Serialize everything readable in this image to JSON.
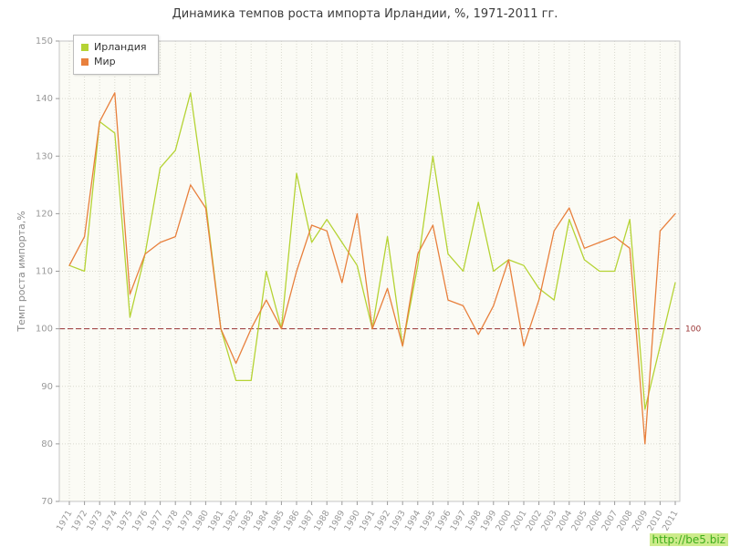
{
  "page": {
    "watermark": "http://be5.biz"
  },
  "chart_data": {
    "type": "line",
    "title": "Динамика темпов роста импорта Ирландии, %, 1971-2011 гг.",
    "xlabel": "",
    "ylabel": "Темп роста импорта,%",
    "ylim": [
      70,
      150
    ],
    "ytick_step": 10,
    "grid": true,
    "grid_style": "dotted",
    "legend_position": "top-left",
    "reference_line": {
      "value": 100,
      "label": "100",
      "color": "#993333",
      "style": "dashed"
    },
    "categories": [
      "1971",
      "1972",
      "1973",
      "1974",
      "1975",
      "1976",
      "1977",
      "1978",
      "1979",
      "1980",
      "1981",
      "1982",
      "1983",
      "1984",
      "1985",
      "1986",
      "1987",
      "1988",
      "1989",
      "1990",
      "1991",
      "1992",
      "1993",
      "1994",
      "1995",
      "1996",
      "1997",
      "1998",
      "1999",
      "2000",
      "2001",
      "2002",
      "2003",
      "2004",
      "2005",
      "2006",
      "2007",
      "2008",
      "2009",
      "2010",
      "2011"
    ],
    "series": [
      {
        "name": "Ирландия",
        "color": "#b5d334",
        "values": [
          111,
          110,
          136,
          134,
          102,
          113,
          128,
          131,
          141,
          122,
          100,
          91,
          91,
          110,
          100,
          127,
          115,
          119,
          115,
          111,
          100,
          116,
          97,
          111,
          130,
          113,
          110,
          122,
          110,
          112,
          111,
          107,
          105,
          119,
          112,
          110,
          110,
          119,
          86,
          97,
          108
        ]
      },
      {
        "name": "Мир",
        "color": "#e8803d",
        "values": [
          111,
          116,
          136,
          141,
          106,
          113,
          115,
          116,
          125,
          121,
          100,
          94,
          100,
          105,
          100,
          110,
          118,
          117,
          108,
          120,
          100,
          107,
          97,
          113,
          118,
          105,
          104,
          99,
          104,
          112,
          97,
          105,
          117,
          121,
          114,
          115,
          116,
          114,
          80,
          117,
          120
        ]
      }
    ]
  }
}
